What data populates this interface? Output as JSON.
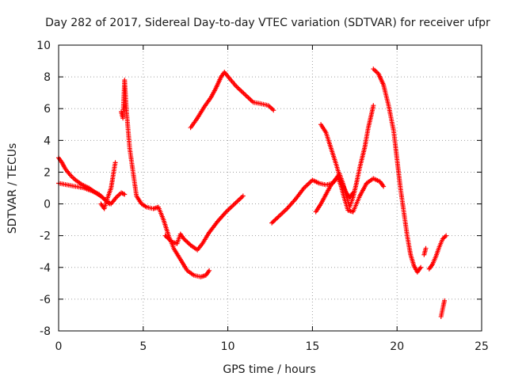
{
  "chart_data": {
    "type": "scatter",
    "title": "Day 282 of 2017, Sidereal Day-to-day VTEC variation (SDTVAR) for receiver ufpr",
    "xlabel": "GPS time / hours",
    "ylabel": "SDTVAR / TECUs",
    "xlim": [
      0,
      25
    ],
    "ylim": [
      -8,
      10
    ],
    "xticks": [
      0,
      5,
      10,
      15,
      20,
      25
    ],
    "yticks": [
      -8,
      -6,
      -4,
      -2,
      0,
      2,
      4,
      6,
      8,
      10
    ],
    "grid": true,
    "marker": "plus",
    "color": "#ff0000",
    "series": [
      {
        "points": [
          [
            0.0,
            2.9
          ],
          [
            0.2,
            2.6
          ],
          [
            0.4,
            2.2
          ],
          [
            0.7,
            1.8
          ],
          [
            1.0,
            1.5
          ],
          [
            1.4,
            1.2
          ],
          [
            1.8,
            1.0
          ],
          [
            2.2,
            0.7
          ],
          [
            2.6,
            0.4
          ],
          [
            3.0,
            0.0
          ]
        ]
      },
      {
        "points": [
          [
            0.0,
            1.3
          ],
          [
            0.5,
            1.2
          ],
          [
            1.0,
            1.1
          ],
          [
            1.5,
            1.0
          ],
          [
            2.0,
            0.8
          ],
          [
            2.4,
            0.6
          ],
          [
            2.8,
            0.2
          ],
          [
            3.1,
            0.0
          ],
          [
            3.4,
            0.4
          ],
          [
            3.7,
            0.7
          ],
          [
            3.9,
            0.6
          ]
        ]
      },
      {
        "points": [
          [
            2.5,
            0.0
          ],
          [
            2.7,
            -0.3
          ],
          [
            2.9,
            0.4
          ],
          [
            3.1,
            1.0
          ],
          [
            3.3,
            2.3
          ],
          [
            3.35,
            2.6
          ]
        ]
      },
      {
        "points": [
          [
            3.7,
            5.8
          ],
          [
            3.8,
            5.4
          ],
          [
            3.9,
            7.8
          ],
          [
            4.0,
            6.0
          ],
          [
            4.2,
            3.5
          ],
          [
            4.4,
            2.0
          ],
          [
            4.6,
            0.5
          ],
          [
            4.9,
            0.0
          ],
          [
            5.2,
            -0.2
          ],
          [
            5.6,
            -0.3
          ],
          [
            5.9,
            -0.2
          ],
          [
            6.2,
            -1.0
          ],
          [
            6.5,
            -2.0
          ],
          [
            6.8,
            -2.8
          ],
          [
            7.2,
            -3.5
          ],
          [
            7.6,
            -4.2
          ],
          [
            8.0,
            -4.5
          ],
          [
            8.4,
            -4.6
          ],
          [
            8.7,
            -4.5
          ],
          [
            8.9,
            -4.2
          ]
        ]
      },
      {
        "points": [
          [
            6.3,
            -2.0
          ],
          [
            6.7,
            -2.4
          ],
          [
            7.0,
            -2.5
          ],
          [
            7.2,
            -1.9
          ],
          [
            7.4,
            -2.2
          ],
          [
            7.8,
            -2.6
          ],
          [
            8.2,
            -2.9
          ],
          [
            8.5,
            -2.5
          ],
          [
            8.9,
            -1.8
          ],
          [
            9.4,
            -1.1
          ],
          [
            9.9,
            -0.5
          ],
          [
            10.4,
            0.0
          ],
          [
            10.9,
            0.5
          ]
        ]
      },
      {
        "points": [
          [
            7.8,
            4.8
          ],
          [
            8.2,
            5.4
          ],
          [
            8.6,
            6.1
          ],
          [
            9.0,
            6.7
          ],
          [
            9.3,
            7.3
          ],
          [
            9.6,
            8.0
          ],
          [
            9.8,
            8.3
          ],
          [
            10.1,
            7.9
          ],
          [
            10.5,
            7.4
          ],
          [
            11.0,
            6.9
          ],
          [
            11.5,
            6.4
          ],
          [
            12.0,
            6.3
          ],
          [
            12.4,
            6.2
          ],
          [
            12.7,
            5.9
          ]
        ]
      },
      {
        "points": [
          [
            12.6,
            -1.2
          ],
          [
            13.0,
            -0.8
          ],
          [
            13.5,
            -0.3
          ],
          [
            14.0,
            0.3
          ],
          [
            14.5,
            1.0
          ],
          [
            15.0,
            1.5
          ],
          [
            15.4,
            1.3
          ],
          [
            15.8,
            1.2
          ],
          [
            16.2,
            1.3
          ],
          [
            16.5,
            1.7
          ],
          [
            16.7,
            1.1
          ],
          [
            16.9,
            0.3
          ],
          [
            17.1,
            -0.4
          ],
          [
            17.4,
            -0.5
          ],
          [
            17.8,
            0.5
          ],
          [
            18.2,
            1.3
          ],
          [
            18.6,
            1.6
          ],
          [
            19.0,
            1.4
          ],
          [
            19.2,
            1.1
          ]
        ]
      },
      {
        "points": [
          [
            15.2,
            -0.5
          ],
          [
            15.5,
            0.0
          ],
          [
            15.8,
            0.6
          ],
          [
            16.1,
            1.2
          ],
          [
            16.4,
            1.6
          ],
          [
            16.6,
            1.9
          ],
          [
            16.8,
            1.3
          ],
          [
            17.0,
            0.5
          ],
          [
            17.2,
            -0.2
          ],
          [
            17.4,
            0.4
          ],
          [
            17.6,
            1.3
          ],
          [
            17.8,
            2.3
          ],
          [
            18.1,
            3.6
          ],
          [
            18.3,
            4.8
          ],
          [
            18.5,
            5.7
          ],
          [
            18.6,
            6.2
          ]
        ]
      },
      {
        "points": [
          [
            15.5,
            5.0
          ],
          [
            15.8,
            4.5
          ],
          [
            16.1,
            3.5
          ],
          [
            16.4,
            2.5
          ],
          [
            16.7,
            1.4
          ],
          [
            17.0,
            0.7
          ],
          [
            17.2,
            0.4
          ],
          [
            17.4,
            0.7
          ]
        ]
      },
      {
        "points": [
          [
            18.6,
            8.5
          ],
          [
            18.9,
            8.2
          ],
          [
            19.2,
            7.5
          ],
          [
            19.5,
            6.2
          ],
          [
            19.8,
            4.6
          ],
          [
            20.0,
            2.8
          ],
          [
            20.2,
            1.0
          ],
          [
            20.4,
            -0.5
          ],
          [
            20.6,
            -2.0
          ],
          [
            20.8,
            -3.2
          ],
          [
            21.0,
            -3.9
          ],
          [
            21.2,
            -4.3
          ],
          [
            21.4,
            -4.0
          ]
        ]
      },
      {
        "points": [
          [
            21.6,
            -3.2
          ],
          [
            21.7,
            -2.8
          ]
        ]
      },
      {
        "points": [
          [
            21.9,
            -4.1
          ],
          [
            22.1,
            -3.8
          ],
          [
            22.3,
            -3.3
          ],
          [
            22.5,
            -2.7
          ],
          [
            22.7,
            -2.2
          ],
          [
            22.9,
            -2.0
          ]
        ]
      },
      {
        "points": [
          [
            22.6,
            -7.1
          ],
          [
            22.7,
            -6.6
          ],
          [
            22.8,
            -6.1
          ]
        ]
      }
    ]
  }
}
